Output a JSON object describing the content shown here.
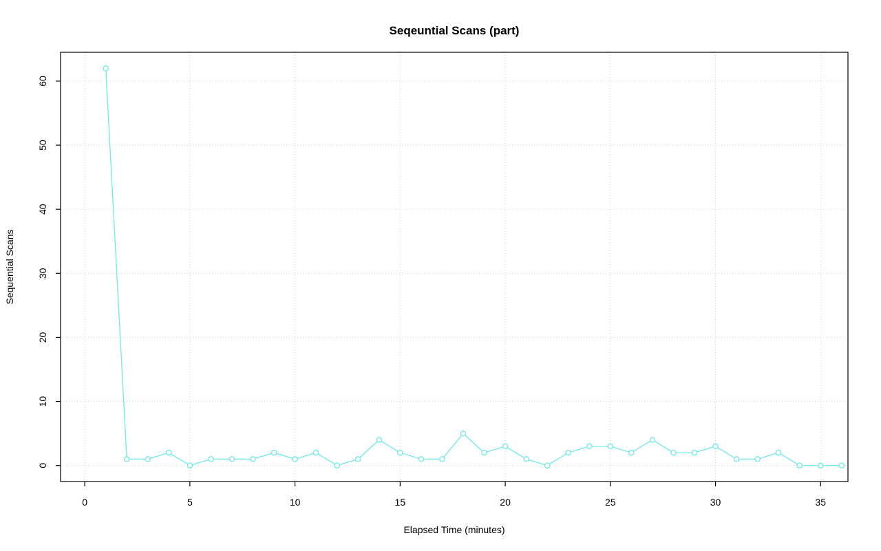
{
  "chart_data": {
    "type": "line",
    "title": "Seqeuntial Scans (part)",
    "xlabel": "Elapsed Time (minutes)",
    "ylabel": "Sequential Scans",
    "x": [
      1,
      2,
      3,
      4,
      5,
      6,
      7,
      8,
      9,
      10,
      11,
      12,
      13,
      14,
      15,
      16,
      17,
      18,
      19,
      20,
      21,
      22,
      23,
      24,
      25,
      26,
      27,
      28,
      29,
      30,
      31,
      32,
      33,
      34,
      35,
      36
    ],
    "values": [
      62,
      1,
      1,
      2,
      0,
      1,
      1,
      1,
      2,
      1,
      2,
      0,
      1,
      4,
      2,
      1,
      1,
      5,
      2,
      3,
      1,
      0,
      2,
      3,
      3,
      2,
      4,
      2,
      2,
      3,
      1,
      1,
      2,
      0,
      0,
      0
    ],
    "xticks": [
      0,
      5,
      10,
      15,
      20,
      25,
      30,
      35
    ],
    "yticks": [
      0,
      10,
      20,
      30,
      40,
      50,
      60
    ],
    "xlim": [
      -1.15,
      36.3
    ],
    "ylim": [
      -2.5,
      64.5
    ],
    "grid": "on",
    "legend": "none",
    "series_color": "#6fe8e8",
    "grid_color": "#d3d3d3",
    "marker": "open-circle"
  }
}
